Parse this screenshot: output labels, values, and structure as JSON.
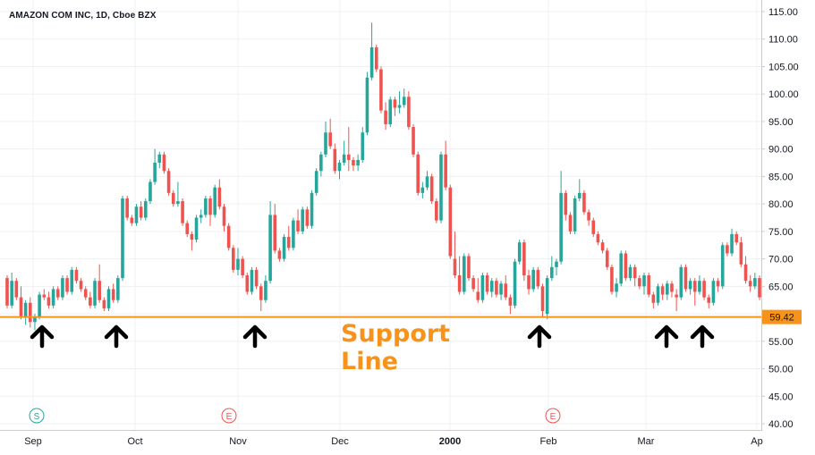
{
  "header": {
    "title": "AMAZON COM INC, 1D, Cboe BZX"
  },
  "annotation": {
    "line1": "Support",
    "line2": "Line",
    "support_level_label": "59.42",
    "support_level": 59.42,
    "arrow_icon": "up-arrow-icon",
    "arrow_x_labels": [
      "Sep",
      "Sep",
      "Nov",
      "Feb",
      "Mar",
      "Mar"
    ]
  },
  "colors": {
    "up": "#26a69a",
    "down": "#ef5350",
    "support": "#f7931a",
    "grid": "#eef0f3",
    "axis_text": "#131722",
    "marker_s": "#26a69a",
    "marker_e": "#ef5350"
  },
  "chart_data": {
    "type": "candlestick",
    "title": "AMAZON COM INC, 1D, Cboe BZX",
    "ylim": [
      40,
      115
    ],
    "y_ticks": [
      "115.00",
      "110.00",
      "105.00",
      "100.00",
      "95.00",
      "90.00",
      "85.00",
      "80.00",
      "75.00",
      "70.00",
      "65.00",
      "60.00",
      "55.00",
      "50.00",
      "45.00",
      "40.00"
    ],
    "x_ticks": [
      "Sep",
      "Oct",
      "Nov",
      "Dec",
      "2000",
      "Feb",
      "Mar",
      "Ap"
    ],
    "grid": true,
    "event_markers": [
      {
        "label": "S",
        "near": "Sep",
        "kind": "split"
      },
      {
        "label": "E",
        "near": "Nov",
        "kind": "earnings"
      },
      {
        "label": "E",
        "near": "Feb",
        "kind": "earnings"
      }
    ],
    "support_line": 59.42,
    "candles": [
      [
        66.5,
        67.0,
        61.0,
        61.5
      ],
      [
        61.5,
        67.5,
        61.0,
        66.0
      ],
      [
        66.0,
        66.5,
        62.5,
        63.0
      ],
      [
        63.0,
        65.0,
        59.0,
        59.5
      ],
      [
        59.5,
        62.5,
        58.0,
        62.0
      ],
      [
        62.0,
        63.0,
        57.5,
        58.5
      ],
      [
        58.5,
        60.0,
        57.0,
        59.5
      ],
      [
        59.5,
        64.0,
        59.0,
        63.5
      ],
      [
        63.5,
        64.5,
        62.5,
        63.0
      ],
      [
        63.0,
        64.0,
        61.0,
        61.5
      ],
      [
        61.5,
        65.0,
        61.0,
        64.5
      ],
      [
        64.5,
        65.0,
        62.5,
        63.0
      ],
      [
        63.0,
        67.0,
        62.5,
        66.5
      ],
      [
        66.5,
        67.0,
        63.5,
        64.0
      ],
      [
        64.0,
        68.5,
        63.5,
        68.0
      ],
      [
        68.0,
        68.5,
        65.5,
        66.0
      ],
      [
        66.0,
        66.5,
        64.0,
        64.5
      ],
      [
        64.5,
        65.0,
        62.5,
        63.0
      ],
      [
        63.0,
        64.0,
        61.0,
        61.5
      ],
      [
        61.5,
        66.5,
        61.0,
        66.0
      ],
      [
        66.0,
        69.0,
        62.0,
        62.5
      ],
      [
        62.5,
        63.0,
        60.5,
        61.0
      ],
      [
        61.0,
        65.0,
        60.5,
        64.5
      ],
      [
        64.5,
        65.5,
        62.0,
        62.5
      ],
      [
        62.5,
        67.0,
        62.0,
        66.5
      ],
      [
        66.5,
        81.5,
        66.0,
        81.0
      ],
      [
        81.0,
        81.5,
        77.0,
        77.5
      ],
      [
        77.5,
        78.0,
        76.0,
        76.5
      ],
      [
        76.5,
        80.0,
        76.0,
        79.5
      ],
      [
        79.5,
        80.5,
        77.0,
        77.5
      ],
      [
        77.5,
        81.0,
        77.0,
        80.5
      ],
      [
        80.5,
        84.5,
        80.0,
        84.0
      ],
      [
        84.0,
        90.0,
        83.5,
        87.5
      ],
      [
        87.5,
        89.5,
        86.5,
        89.0
      ],
      [
        89.0,
        89.5,
        85.5,
        86.0
      ],
      [
        86.0,
        86.5,
        81.5,
        82.0
      ],
      [
        82.0,
        82.5,
        79.5,
        80.0
      ],
      [
        80.0,
        84.0,
        79.5,
        80.5
      ],
      [
        80.5,
        81.0,
        76.0,
        76.5
      ],
      [
        76.5,
        77.0,
        74.0,
        74.5
      ],
      [
        74.5,
        75.0,
        71.5,
        73.5
      ],
      [
        73.5,
        78.0,
        73.0,
        77.5
      ],
      [
        77.5,
        79.0,
        76.5,
        78.0
      ],
      [
        78.0,
        81.5,
        77.5,
        81.0
      ],
      [
        81.0,
        81.5,
        76.0,
        78.0
      ],
      [
        78.0,
        83.5,
        77.5,
        83.0
      ],
      [
        83.0,
        84.5,
        79.0,
        79.5
      ],
      [
        79.5,
        80.0,
        75.0,
        76.0
      ],
      [
        76.0,
        76.5,
        71.5,
        72.0
      ],
      [
        72.0,
        72.5,
        67.5,
        68.0
      ],
      [
        68.0,
        72.0,
        67.0,
        70.0
      ],
      [
        70.0,
        70.5,
        66.5,
        67.0
      ],
      [
        67.0,
        67.5,
        63.5,
        64.0
      ],
      [
        64.0,
        68.5,
        63.5,
        68.0
      ],
      [
        68.0,
        68.5,
        64.5,
        65.0
      ],
      [
        65.0,
        65.5,
        60.5,
        62.5
      ],
      [
        62.5,
        67.0,
        62.0,
        66.0
      ],
      [
        66.0,
        80.5,
        65.5,
        78.0
      ],
      [
        78.0,
        80.0,
        71.0,
        71.5
      ],
      [
        71.5,
        72.0,
        69.5,
        70.0
      ],
      [
        70.0,
        74.5,
        69.5,
        74.0
      ],
      [
        74.0,
        76.0,
        71.5,
        72.0
      ],
      [
        72.0,
        77.5,
        71.5,
        77.0
      ],
      [
        77.0,
        79.0,
        74.5,
        75.0
      ],
      [
        75.0,
        79.5,
        74.5,
        79.0
      ],
      [
        79.0,
        79.5,
        75.5,
        76.0
      ],
      [
        76.0,
        82.5,
        75.5,
        82.0
      ],
      [
        82.0,
        86.5,
        81.5,
        86.0
      ],
      [
        86.0,
        89.5,
        85.0,
        89.0
      ],
      [
        89.0,
        95.0,
        88.5,
        93.0
      ],
      [
        93.0,
        95.5,
        90.0,
        90.5
      ],
      [
        90.0,
        91.0,
        85.5,
        86.0
      ],
      [
        86.0,
        88.0,
        84.5,
        87.5
      ],
      [
        87.5,
        91.5,
        87.0,
        89.0
      ],
      [
        89.0,
        94.0,
        86.0,
        88.0
      ],
      [
        88.0,
        88.5,
        86.0,
        87.0
      ],
      [
        87.0,
        89.0,
        86.0,
        88.0
      ],
      [
        88.0,
        94.0,
        87.5,
        93.0
      ],
      [
        93.0,
        104.0,
        92.5,
        103.0
      ],
      [
        103.0,
        113.0,
        102.5,
        108.5
      ],
      [
        108.5,
        109.0,
        104.0,
        104.5
      ],
      [
        104.5,
        105.0,
        96.5,
        97.0
      ],
      [
        97.0,
        98.5,
        93.5,
        94.5
      ],
      [
        94.5,
        99.5,
        94.0,
        99.0
      ],
      [
        99.0,
        99.5,
        96.0,
        97.5
      ],
      [
        97.5,
        100.5,
        96.5,
        98.0
      ],
      [
        98.0,
        101.0,
        97.5,
        99.5
      ],
      [
        99.5,
        100.5,
        93.5,
        94.0
      ],
      [
        94.0,
        94.5,
        88.5,
        89.0
      ],
      [
        89.0,
        89.5,
        81.5,
        82.0
      ],
      [
        82.0,
        84.0,
        81.0,
        83.0
      ],
      [
        83.0,
        86.0,
        82.5,
        85.0
      ],
      [
        85.0,
        85.5,
        80.0,
        80.5
      ],
      [
        80.5,
        81.0,
        76.5,
        77.0
      ],
      [
        77.0,
        89.5,
        76.5,
        89.0
      ],
      [
        89.0,
        91.5,
        82.5,
        83.0
      ],
      [
        83.0,
        83.5,
        70.0,
        70.5
      ],
      [
        70.0,
        75.0,
        66.5,
        67.0
      ],
      [
        67.0,
        70.5,
        63.5,
        64.0
      ],
      [
        64.0,
        71.0,
        63.5,
        70.5
      ],
      [
        70.5,
        71.0,
        66.0,
        66.5
      ],
      [
        66.5,
        67.0,
        64.0,
        64.5
      ],
      [
        64.0,
        66.5,
        62.0,
        62.5
      ],
      [
        62.5,
        67.5,
        62.0,
        67.0
      ],
      [
        67.0,
        67.5,
        63.5,
        64.0
      ],
      [
        64.0,
        66.5,
        63.0,
        66.0
      ],
      [
        66.0,
        66.5,
        63.0,
        63.5
      ],
      [
        63.5,
        66.0,
        62.5,
        65.5
      ],
      [
        65.5,
        67.0,
        62.5,
        63.0
      ],
      [
        63.0,
        63.5,
        60.0,
        61.5
      ],
      [
        61.5,
        70.0,
        61.0,
        69.5
      ],
      [
        69.5,
        73.5,
        69.0,
        73.0
      ],
      [
        73.0,
        73.5,
        66.0,
        67.0
      ],
      [
        67.0,
        68.0,
        63.5,
        64.5
      ],
      [
        64.5,
        68.5,
        64.0,
        68.0
      ],
      [
        68.0,
        68.5,
        64.5,
        65.0
      ],
      [
        65.0,
        65.5,
        59.5,
        60.5
      ],
      [
        60.0,
        67.0,
        59.0,
        66.5
      ],
      [
        66.5,
        70.5,
        66.0,
        68.5
      ],
      [
        68.5,
        70.0,
        67.0,
        69.5
      ],
      [
        69.5,
        86.0,
        69.0,
        82.0
      ],
      [
        82.0,
        82.5,
        77.0,
        78.0
      ],
      [
        78.0,
        78.5,
        74.5,
        75.0
      ],
      [
        75.0,
        81.5,
        74.5,
        81.0
      ],
      [
        81.0,
        84.5,
        80.5,
        82.0
      ],
      [
        82.0,
        82.5,
        78.0,
        78.5
      ],
      [
        78.5,
        79.0,
        76.0,
        77.0
      ],
      [
        77.0,
        77.5,
        74.0,
        74.5
      ],
      [
        74.5,
        75.0,
        72.5,
        73.0
      ],
      [
        73.0,
        73.5,
        71.0,
        71.5
      ],
      [
        71.5,
        72.0,
        68.0,
        68.5
      ],
      [
        68.5,
        69.0,
        63.5,
        64.0
      ],
      [
        64.0,
        66.5,
        63.0,
        65.5
      ],
      [
        65.5,
        71.5,
        65.0,
        71.0
      ],
      [
        71.0,
        71.5,
        66.0,
        66.5
      ],
      [
        66.5,
        69.0,
        66.0,
        68.5
      ],
      [
        68.5,
        69.0,
        65.0,
        66.5
      ],
      [
        66.5,
        67.0,
        64.5,
        65.0
      ],
      [
        65.0,
        67.5,
        63.5,
        67.0
      ],
      [
        67.0,
        67.5,
        63.0,
        63.5
      ],
      [
        63.5,
        64.0,
        61.0,
        62.0
      ],
      [
        62.0,
        65.5,
        61.5,
        65.0
      ],
      [
        65.0,
        65.5,
        62.5,
        63.5
      ],
      [
        63.5,
        66.0,
        62.5,
        65.5
      ],
      [
        65.5,
        66.0,
        63.0,
        64.0
      ],
      [
        63.5,
        64.5,
        60.5,
        63.0
      ],
      [
        63.0,
        69.0,
        62.5,
        68.5
      ],
      [
        68.5,
        69.0,
        64.0,
        64.5
      ],
      [
        64.5,
        66.5,
        63.5,
        66.0
      ],
      [
        66.0,
        66.5,
        61.5,
        64.0
      ],
      [
        64.0,
        67.0,
        63.5,
        66.0
      ],
      [
        66.0,
        66.5,
        62.5,
        63.0
      ],
      [
        63.0,
        63.5,
        61.0,
        62.0
      ],
      [
        62.0,
        66.5,
        61.5,
        66.0
      ],
      [
        66.0,
        66.5,
        64.0,
        65.0
      ],
      [
        65.0,
        73.0,
        64.5,
        72.5
      ],
      [
        72.5,
        73.0,
        70.5,
        71.0
      ],
      [
        71.0,
        75.5,
        70.5,
        74.5
      ],
      [
        74.5,
        75.0,
        72.5,
        73.0
      ],
      [
        73.0,
        74.0,
        68.5,
        69.0
      ],
      [
        69.0,
        70.5,
        65.5,
        66.0
      ],
      [
        66.0,
        67.0,
        64.0,
        65.0
      ],
      [
        65.0,
        67.5,
        64.5,
        66.5
      ],
      [
        66.5,
        67.0,
        62.5,
        63.0
      ]
    ]
  }
}
